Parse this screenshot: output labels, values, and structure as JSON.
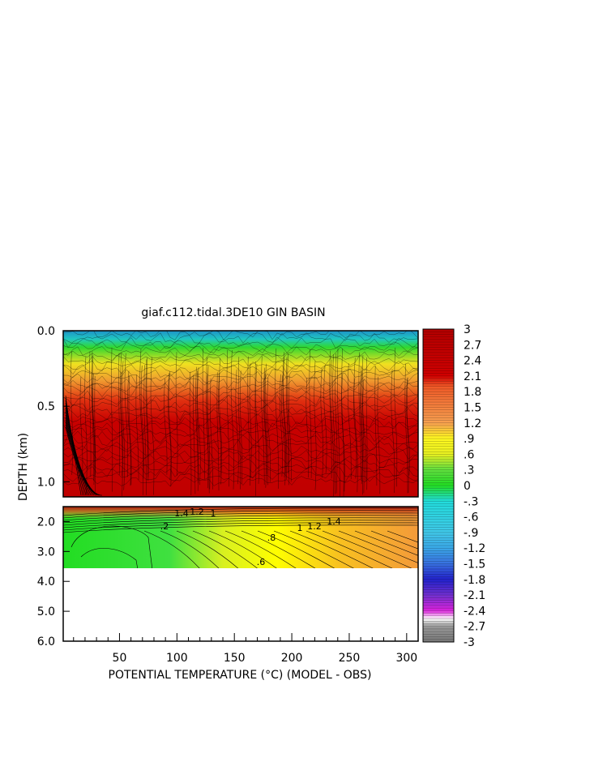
{
  "chart_data": {
    "type": "heatmap",
    "title": "giaf.c112.tidal.3DE10 GIN BASIN",
    "xlabel": "POTENTIAL TEMPERATURE (°C) (MODEL - OBS)",
    "ylabel": "DEPTH (km)",
    "xlim": [
      1,
      310
    ],
    "x_ticks": [
      "50",
      "100",
      "150",
      "200",
      "250",
      "300"
    ],
    "x_tick_values": [
      50,
      100,
      150,
      200,
      250,
      300
    ],
    "upper_panel": {
      "ylim": [
        0.0,
        1.1
      ],
      "y_ticks": [
        "0.0",
        "0.5",
        "1.0"
      ],
      "y_tick_values": [
        0.0,
        0.5,
        1.0
      ]
    },
    "lower_panel": {
      "ylim": [
        1.5,
        6.0
      ],
      "y_ticks": [
        "2.0",
        "3.0",
        "4.0",
        "5.0",
        "6.0"
      ],
      "y_tick_values": [
        2.0,
        3.0,
        4.0,
        5.0,
        6.0
      ],
      "data_bottom_km": 3.3
    },
    "colorbar": {
      "range": [
        -3,
        3
      ],
      "labels": [
        "3",
        "2.7",
        "2.4",
        "2.1",
        "1.8",
        "1.5",
        "1.2",
        ".9",
        ".6",
        ".3",
        "0",
        "-.3",
        "-.6",
        "-.9",
        "-1.2",
        "-1.5",
        "-1.8",
        "-2.1",
        "-2.4",
        "-2.7",
        "-3"
      ],
      "label_values": [
        3,
        2.7,
        2.4,
        2.1,
        1.8,
        1.5,
        1.2,
        0.9,
        0.6,
        0.3,
        0,
        -0.3,
        -0.6,
        -0.9,
        -1.2,
        -1.5,
        -1.8,
        -2.1,
        -2.4,
        -2.7,
        -3
      ]
    },
    "contour_labels": [
      ".2",
      ".8",
      "1",
      "1.2",
      "1.4",
      ".6",
      "1.4",
      "1.2",
      "1"
    ],
    "contour_label_values": [
      0.2,
      0.8,
      1.0,
      1.2,
      1.4,
      0.6,
      1.4,
      1.2,
      1.0
    ],
    "colors": {
      "red": "#c00000",
      "orange": "#f39a3a",
      "yellow": "#ffff00",
      "green": "#22dd22",
      "cyan": "#22dddd",
      "blue": "#2222cc",
      "magenta": "#dd22dd",
      "gray": "#888888"
    }
  }
}
